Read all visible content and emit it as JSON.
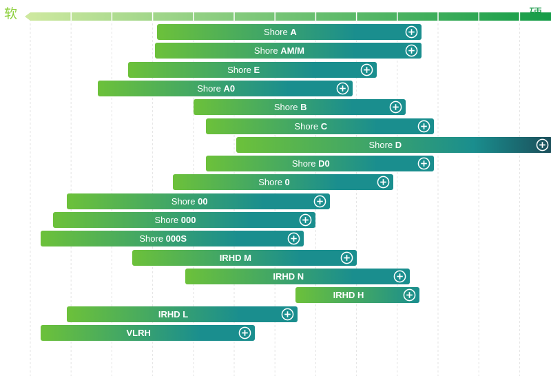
{
  "header": {
    "soft_label": "软",
    "hard_label": "硬"
  },
  "colors": {
    "scale_start": "#cfe9a0",
    "scale_end": "#0f9a45",
    "bar_soft": "#6cc13a",
    "bar_mid": "#1a8e8e",
    "bar_hard": "#1b4e5a",
    "grid": "#e3e3e3"
  },
  "chart_data": {
    "type": "bar",
    "orientation": "horizontal-range",
    "xlabel_left": "软",
    "xlabel_right": "硬",
    "xlim": [
      0,
      13
    ],
    "grid": true,
    "icon": "plus-circle-icon",
    "series": [
      {
        "prefix": "Shore ",
        "bold": "A",
        "start": 3.1,
        "end": 9.6
      },
      {
        "prefix": "Shore ",
        "bold": "AM/M",
        "start": 3.05,
        "end": 9.6
      },
      {
        "prefix": "Shore ",
        "bold": "E",
        "start": 2.4,
        "end": 8.5
      },
      {
        "prefix": "Shore ",
        "bold": "A0",
        "start": 1.65,
        "end": 7.9
      },
      {
        "prefix": "Shore ",
        "bold": "B",
        "start": 4.0,
        "end": 9.2
      },
      {
        "prefix": "Shore ",
        "bold": "C",
        "start": 4.3,
        "end": 9.9
      },
      {
        "prefix": "Shore ",
        "bold": "D",
        "start": 5.05,
        "end": 12.8
      },
      {
        "prefix": "Shore ",
        "bold": "D0",
        "start": 4.3,
        "end": 9.9
      },
      {
        "prefix": "Shore ",
        "bold": "0",
        "start": 3.5,
        "end": 8.9
      },
      {
        "prefix": "Shore ",
        "bold": "00",
        "start": 0.9,
        "end": 7.35
      },
      {
        "prefix": "Shore ",
        "bold": "000",
        "start": 0.55,
        "end": 7.0
      },
      {
        "prefix": "Shore ",
        "bold": "000S",
        "start": 0.25,
        "end": 6.7
      },
      {
        "prefix": "",
        "bold": "IRHD M",
        "start": 2.5,
        "end": 8.0
      },
      {
        "prefix": "",
        "bold": "IRHD N",
        "start": 3.8,
        "end": 9.3
      },
      {
        "prefix": "",
        "bold": "IRHD H",
        "start": 6.5,
        "end": 9.55
      },
      {
        "prefix": "",
        "bold": "IRHD L",
        "start": 0.9,
        "end": 6.55
      },
      {
        "prefix": "",
        "bold": "VLRH",
        "start": 0.25,
        "end": 5.5
      }
    ]
  }
}
